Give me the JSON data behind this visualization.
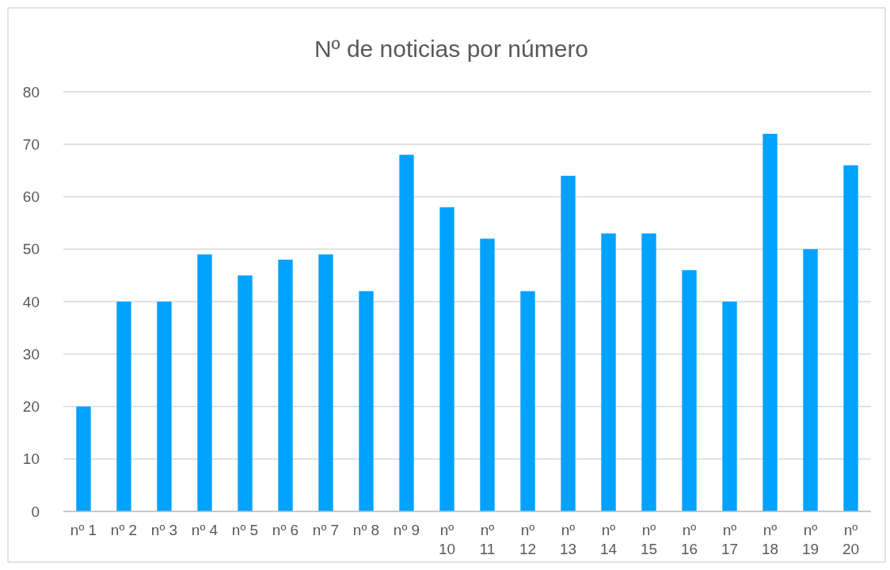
{
  "chart_data": {
    "type": "bar",
    "title": "Nº de noticias por número",
    "categories": [
      "nº 1",
      "nº 2",
      "nº 3",
      "nº 4",
      "nº 5",
      "nº 6",
      "nº 7",
      "nº 8",
      "nº 9",
      "nº 10",
      "nº 11",
      "nº 12",
      "nº 13",
      "nº 14",
      "nº 15",
      "nº 16",
      "nº 17",
      "nº 18",
      "nº 19",
      "nº 20"
    ],
    "values": [
      20,
      40,
      40,
      49,
      45,
      48,
      49,
      42,
      68,
      58,
      52,
      42,
      64,
      53,
      53,
      46,
      40,
      72,
      50,
      66
    ],
    "color": "#00a2ff",
    "ylim": [
      0,
      80
    ],
    "yticks": [
      0,
      10,
      20,
      30,
      40,
      50,
      60,
      70,
      80
    ],
    "grid": "y"
  }
}
